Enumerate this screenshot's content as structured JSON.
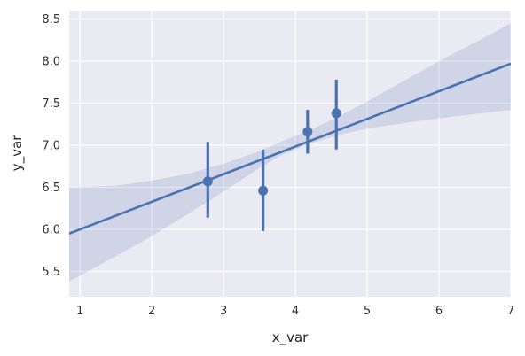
{
  "chart_data": {
    "type": "scatter",
    "title": "",
    "xlabel": "x_var",
    "ylabel": "y_var",
    "xlim": [
      0.85,
      7.0
    ],
    "ylim": [
      5.2,
      8.6
    ],
    "xticks": [
      1,
      2,
      3,
      4,
      5,
      6,
      7
    ],
    "xtick_labels": [
      "1",
      "2",
      "3",
      "4",
      "5",
      "6",
      "7"
    ],
    "yticks": [
      5.5,
      6.0,
      6.5,
      7.0,
      7.5,
      8.0,
      8.5
    ],
    "ytick_labels": [
      "5.5",
      "6.0",
      "6.5",
      "7.0",
      "7.5",
      "8.0",
      "8.5"
    ],
    "grid": true,
    "series": [
      {
        "points": [
          {
            "x": 2.78,
            "y": 6.57,
            "lo": 6.14,
            "hi": 7.04
          },
          {
            "x": 3.55,
            "y": 6.46,
            "lo": 5.98,
            "hi": 6.95
          },
          {
            "x": 4.17,
            "y": 7.16,
            "lo": 6.9,
            "hi": 7.42
          },
          {
            "x": 4.57,
            "y": 7.38,
            "lo": 6.95,
            "hi": 7.78
          }
        ],
        "regression": {
          "x": [
            0.85,
            7.0
          ],
          "y": [
            5.95,
            7.97
          ]
        },
        "ci_band": {
          "x": [
            0.85,
            1.5,
            2.0,
            2.5,
            3.0,
            3.5,
            3.8,
            4.2,
            4.6,
            5.0,
            5.5,
            6.0,
            6.5,
            7.0
          ],
          "lower": [
            5.38,
            5.68,
            5.92,
            6.18,
            6.45,
            6.73,
            6.88,
            7.02,
            7.12,
            7.2,
            7.26,
            7.32,
            7.37,
            7.42
          ],
          "upper": [
            6.5,
            6.52,
            6.58,
            6.66,
            6.78,
            6.93,
            7.04,
            7.18,
            7.34,
            7.52,
            7.76,
            8.0,
            8.22,
            8.45
          ]
        }
      }
    ],
    "colors": {
      "line": "#4c72b0",
      "band": "#4c72b0",
      "background": "#eaeaf2",
      "grid": "#ffffff"
    }
  }
}
